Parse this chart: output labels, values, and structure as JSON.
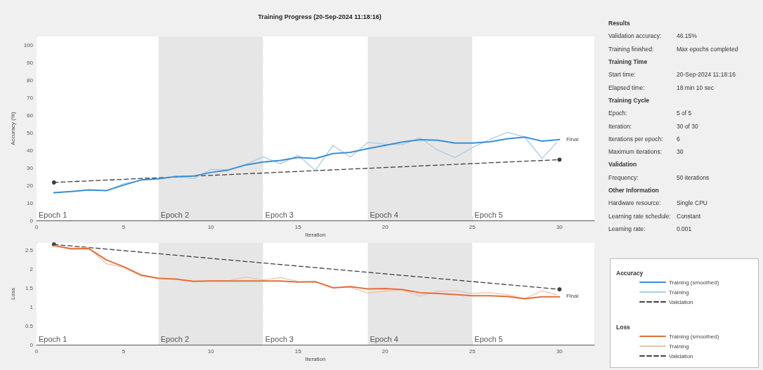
{
  "chart_data": [
    {
      "type": "line",
      "title": "Training Progress (20-Sep-2024 11:18:16)",
      "xlabel": "Iteration",
      "ylabel": "Accuracy (%)",
      "legend_title": "Accuracy",
      "xlim": [
        0,
        32
      ],
      "xticks": [
        0,
        5,
        10,
        15,
        20,
        25,
        30
      ],
      "ylim": [
        0,
        105
      ],
      "yticks": [
        0,
        10,
        20,
        30,
        40,
        50,
        60,
        70,
        80,
        90,
        100
      ],
      "grid": "y",
      "legend": "right",
      "marker": "none",
      "line_style": "solid",
      "series": [
        {
          "name": "Training (smoothed)",
          "color": "#3b8ed4",
          "x": [
            1,
            2,
            3,
            4,
            5,
            6,
            7,
            8,
            9,
            10,
            11,
            12,
            13,
            14,
            15,
            16,
            17,
            18,
            19,
            20,
            21,
            22,
            23,
            24,
            25,
            26,
            27,
            28,
            29,
            30
          ],
          "values": [
            15.8,
            16.5,
            17.4,
            17,
            20.2,
            23.1,
            23.8,
            25,
            25.3,
            27.4,
            28.8,
            31.7,
            33.4,
            34.3,
            36,
            35.4,
            38.2,
            38.9,
            41,
            42.9,
            44.8,
            46.1,
            45.8,
            44.2,
            44.2,
            44.9,
            46.6,
            47.6,
            45.3,
            46.2
          ]
        },
        {
          "name": "Training",
          "color": "#a9cde8",
          "x": [
            1,
            2,
            3,
            4,
            5,
            6,
            7,
            8,
            9,
            10,
            11,
            12,
            13,
            14,
            15,
            16,
            17,
            18,
            19,
            20,
            21,
            22,
            23,
            24,
            25,
            26,
            27,
            28,
            29,
            30
          ],
          "values": [
            16,
            16.5,
            17.4,
            17,
            21,
            23,
            23.5,
            25.5,
            23.8,
            29.1,
            29,
            32,
            36.3,
            32.3,
            37.2,
            28.6,
            42.8,
            36.2,
            44.6,
            43.5,
            43.3,
            47.2,
            40.2,
            35.9,
            41.6,
            46.2,
            50.3,
            47.6,
            35.4,
            46.2
          ]
        },
        {
          "name": "Validation",
          "color": "#404040",
          "x": [
            1,
            30
          ],
          "values": [
            21.7,
            34.7
          ],
          "marker": "circle",
          "line_style": "dashed"
        }
      ],
      "bands": [
        {
          "axis": "x",
          "from": 0,
          "to": 7,
          "label": "Epoch 1",
          "color": "#ffffff"
        },
        {
          "axis": "x",
          "from": 7,
          "to": 13,
          "label": "Epoch 2",
          "color": "#e6e6e6"
        },
        {
          "axis": "x",
          "from": 13,
          "to": 19,
          "label": "Epoch 3",
          "color": "#ffffff"
        },
        {
          "axis": "x",
          "from": 19,
          "to": 25,
          "label": "Epoch 4",
          "color": "#e6e6e6"
        },
        {
          "axis": "x",
          "from": 25,
          "to": 32,
          "label": "Epoch 5",
          "color": "#ffffff"
        }
      ],
      "annotations": [
        {
          "text": "Final",
          "x": 30,
          "y": 46.2
        }
      ]
    },
    {
      "type": "line",
      "xlabel": "Iteration",
      "ylabel": "Loss",
      "legend_title": "Loss",
      "xlim": [
        0,
        32
      ],
      "xticks": [
        0,
        5,
        10,
        15,
        20,
        25,
        30
      ],
      "ylim": [
        0,
        2.7
      ],
      "yticks": [
        0,
        0.5,
        1,
        1.5,
        2,
        2.5
      ],
      "grid": "y",
      "legend": "right",
      "marker": "none",
      "line_style": "solid",
      "series": [
        {
          "name": "Training (smoothed)",
          "color": "#e2703a",
          "x": [
            1,
            2,
            3,
            4,
            5,
            6,
            7,
            8,
            9,
            10,
            11,
            12,
            13,
            14,
            15,
            16,
            17,
            18,
            19,
            20,
            21,
            22,
            23,
            24,
            25,
            26,
            27,
            28,
            29,
            30
          ],
          "values": [
            2.63,
            2.54,
            2.55,
            2.25,
            2.07,
            1.85,
            1.76,
            1.74,
            1.68,
            1.69,
            1.69,
            1.69,
            1.69,
            1.69,
            1.66,
            1.67,
            1.51,
            1.54,
            1.48,
            1.49,
            1.46,
            1.38,
            1.36,
            1.33,
            1.3,
            1.3,
            1.28,
            1.22,
            1.27,
            1.27
          ]
        },
        {
          "name": "Training",
          "color": "#f2c3ab",
          "x": [
            1,
            2,
            3,
            4,
            5,
            6,
            7,
            8,
            9,
            10,
            11,
            12,
            13,
            14,
            15,
            16,
            17,
            18,
            19,
            20,
            21,
            22,
            23,
            24,
            25,
            26,
            27,
            28,
            29,
            30
          ],
          "values": [
            2.63,
            2.56,
            2.57,
            2.15,
            2.05,
            1.82,
            1.77,
            1.74,
            1.69,
            1.7,
            1.7,
            1.79,
            1.72,
            1.78,
            1.68,
            1.67,
            1.52,
            1.52,
            1.37,
            1.42,
            1.45,
            1.29,
            1.42,
            1.43,
            1.36,
            1.38,
            1.33,
            1.22,
            1.43,
            1.3
          ]
        },
        {
          "name": "Validation",
          "color": "#404040",
          "x": [
            1,
            30
          ],
          "values": [
            2.66,
            1.47
          ],
          "marker": "circle",
          "line_style": "dashed"
        }
      ],
      "bands": [
        {
          "axis": "x",
          "from": 0,
          "to": 7,
          "label": "Epoch 1",
          "color": "#ffffff"
        },
        {
          "axis": "x",
          "from": 7,
          "to": 13,
          "label": "Epoch 2",
          "color": "#e6e6e6"
        },
        {
          "axis": "x",
          "from": 13,
          "to": 19,
          "label": "Epoch 3",
          "color": "#ffffff"
        },
        {
          "axis": "x",
          "from": 19,
          "to": 25,
          "label": "Epoch 4",
          "color": "#e6e6e6"
        },
        {
          "axis": "x",
          "from": 25,
          "to": 32,
          "label": "Epoch 5",
          "color": "#ffffff"
        }
      ],
      "annotations": [
        {
          "text": "Final",
          "x": 30,
          "y": 1.29
        }
      ]
    },
    {
      "type": "other",
      "y_categories": [
        "Results",
        "Validation accuracy:",
        "Training finished:",
        "Training Time",
        "Start time:",
        "Elapsed time:",
        "Training Cycle",
        "Epoch:",
        "Iteration:",
        "Iterations per epoch:",
        "Maximum iterations:",
        "Validation",
        "Frequency:",
        "Other Information",
        "Hardware resource:",
        "Learning rate schedule:",
        "Learning rate:"
      ],
      "cell_labels": [
        [
          null
        ],
        [
          "46.15%"
        ],
        [
          "Max epochs completed"
        ],
        [
          null
        ],
        [
          "20-Sep-2024 11:18:16"
        ],
        [
          "18 min 10 sec"
        ],
        [
          null
        ],
        [
          "5 of 5"
        ],
        [
          "30 of 30"
        ],
        [
          "6"
        ],
        [
          "30"
        ],
        [
          null
        ],
        [
          "50 iterations"
        ],
        [
          null
        ],
        [
          "Single CPU"
        ],
        [
          "Constant"
        ],
        [
          "0.001"
        ]
      ]
    }
  ]
}
